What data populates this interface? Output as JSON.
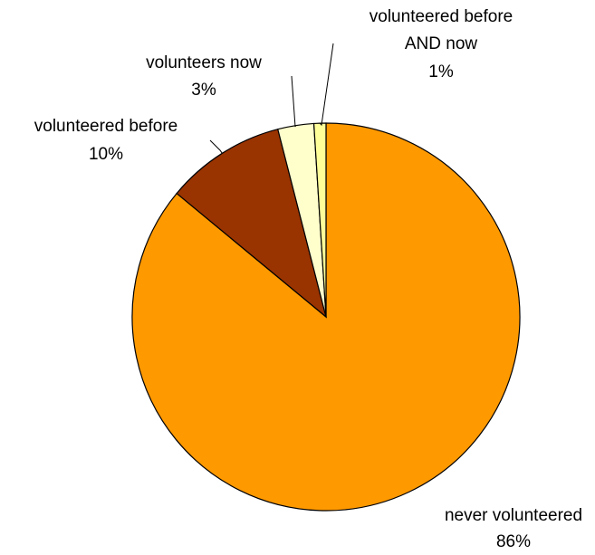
{
  "chart_data": {
    "type": "pie",
    "title": "",
    "start": "12 o'clock",
    "direction": "clockwise",
    "slices": [
      {
        "name": "never volunteered",
        "value": 86,
        "label": "never volunteered",
        "pct_label": "86%",
        "color": "#FF9900"
      },
      {
        "name": "volunteered before",
        "value": 10,
        "label": "volunteered before",
        "pct_label": "10%",
        "color": "#993300"
      },
      {
        "name": "volunteers now",
        "value": 3,
        "label": "volunteers now",
        "pct_label": "3%",
        "color": "#FFFFCC"
      },
      {
        "name": "volunteered before AND now",
        "value": 1,
        "label_lines": [
          "volunteered before",
          "AND now"
        ],
        "pct_label": "1%",
        "color": "#FFFF99"
      }
    ]
  }
}
